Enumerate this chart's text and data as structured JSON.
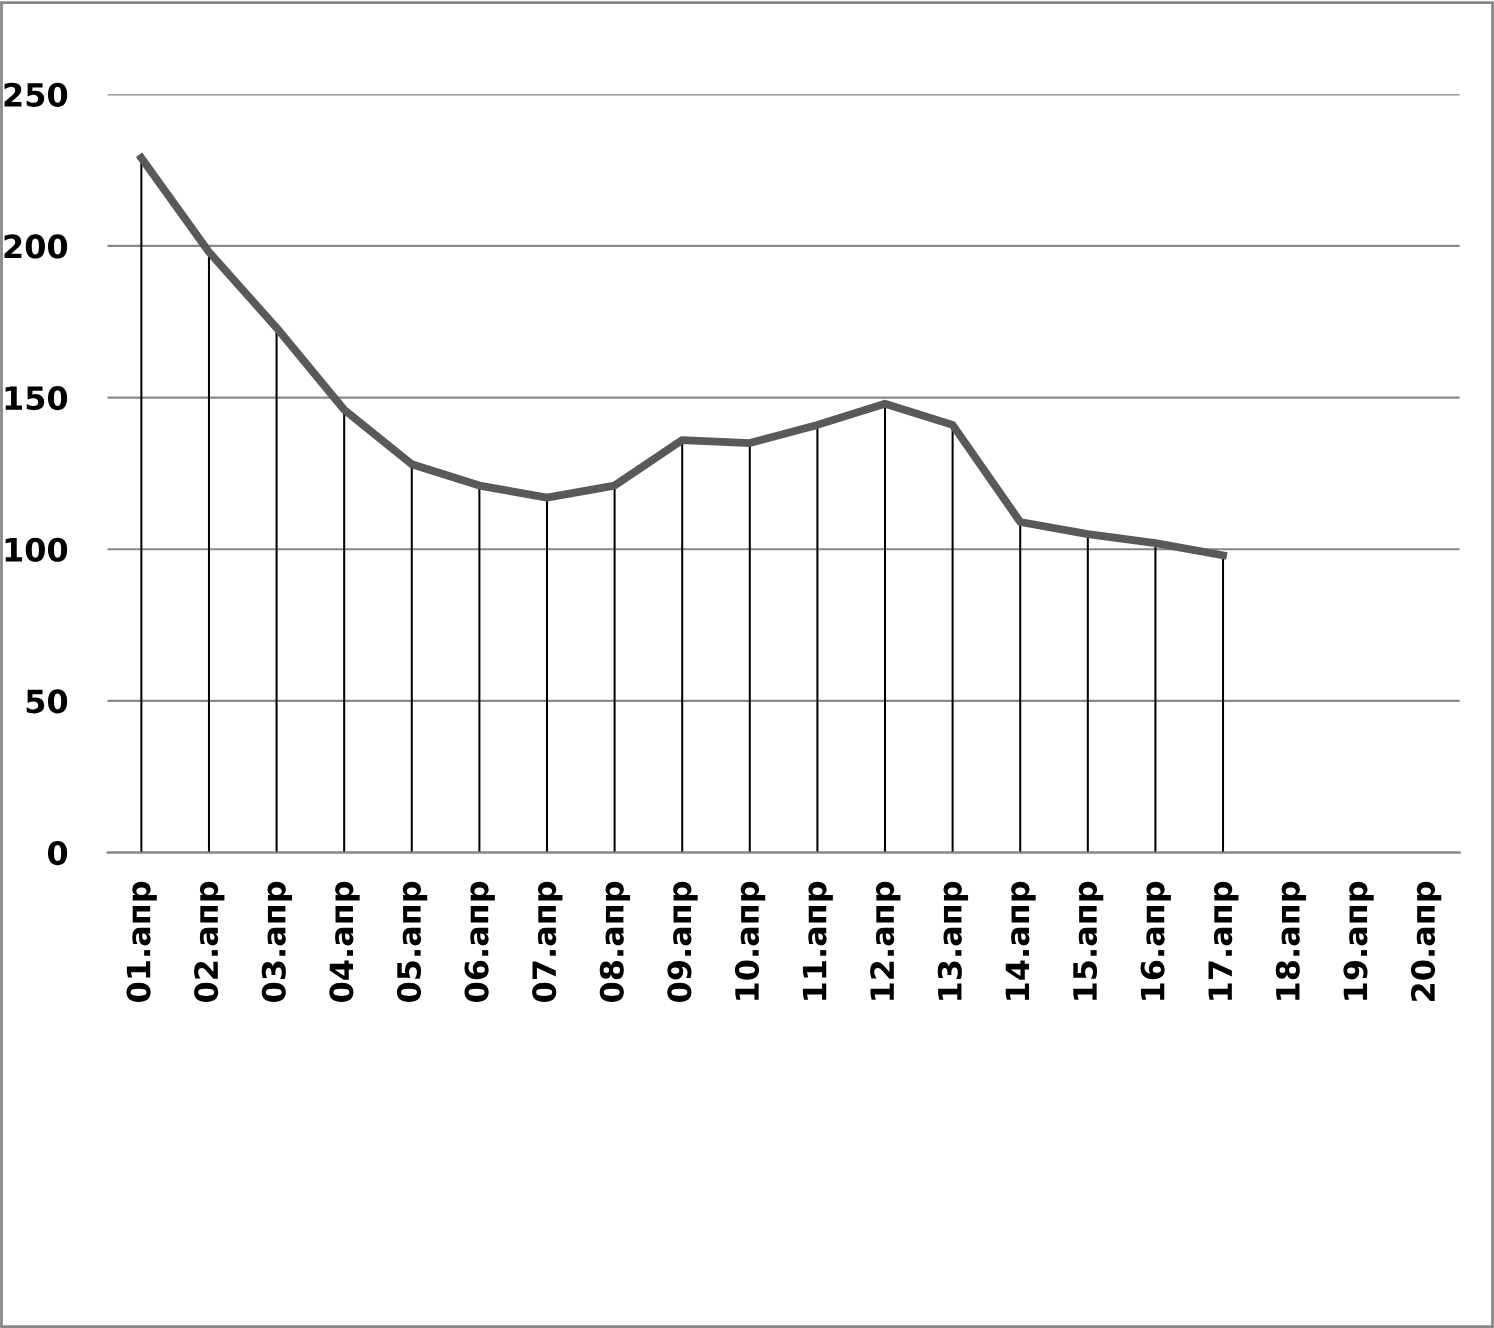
{
  "chart_data": {
    "type": "line",
    "categories": [
      "01.апр",
      "02.апр",
      "03.апр",
      "04.апр",
      "05.апр",
      "06.апр",
      "07.апр",
      "08.апр",
      "09.апр",
      "10.апр",
      "11.апр",
      "12.апр",
      "13.апр",
      "14.апр",
      "15.апр",
      "16.апр",
      "17.апр",
      "18.апр",
      "19.апр",
      "20.апр"
    ],
    "series": [
      {
        "color": "#595959",
        "values": [
          229,
          198,
          173,
          146,
          128,
          121,
          117,
          121,
          136,
          135,
          141,
          148,
          141,
          109,
          105,
          102,
          98,
          null,
          null,
          null
        ]
      },
      {
        "type": "bar",
        "color": "#000000",
        "values": [
          229,
          198,
          173,
          146,
          128,
          121,
          117,
          121,
          136,
          135,
          141,
          148,
          141,
          109,
          105,
          102,
          98,
          null,
          null,
          null
        ]
      }
    ],
    "ylim": [
      0,
      250
    ],
    "yticks": [
      0,
      50,
      100,
      150,
      200,
      250
    ],
    "grid": "y",
    "marker": "none",
    "line_style": "solid"
  }
}
